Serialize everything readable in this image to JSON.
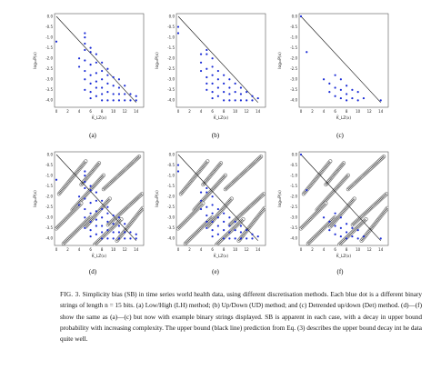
{
  "figure": {
    "panels": [
      "(a)",
      "(b)",
      "(c)",
      "(d)",
      "(e)",
      "(f)"
    ],
    "ylabel": "log₁₀P(x)",
    "xlabel": "K̃_LZ(x)"
  },
  "caption": {
    "label": "FIG. 3.",
    "text": "Simplicity bias (SB) in time series world health data, using different discretisation methods. Each blue dot is a different binary strings of length n = 15 bits. (a) Low/High (LH) method; (b) Up/Down (UD) method; and (c) Detrended up/down (Det) method. (d)—(f) show the same as (a)—(c) but now with example binary strings displayed. SB is apparent in each case, with a decay in upper bound probability with increasing complexity. The upper bound (black line) prediction from Eq. (3) describes the upper bound decay int he data quite well."
  },
  "chart_data": [
    {
      "type": "scatter",
      "panel": "(a)",
      "xlim": [
        0,
        15
      ],
      "ylim": [
        -4.2,
        0
      ],
      "x_ticks": [
        0,
        2,
        4,
        6,
        8,
        10,
        12,
        14
      ],
      "y_ticks": [
        "0.0",
        "-0.5",
        "-1.0",
        "-1.5",
        "-2.0",
        "-2.5",
        "-3.0",
        "-3.5",
        "-4.0"
      ],
      "bound": [
        [
          0,
          0
        ],
        [
          14,
          -4.1
        ]
      ],
      "points": [
        [
          0,
          -1.2
        ],
        [
          4,
          -2.0
        ],
        [
          4,
          -2.4
        ],
        [
          5,
          -0.8
        ],
        [
          5,
          -1.0
        ],
        [
          5,
          -1.3
        ],
        [
          5,
          -1.6
        ],
        [
          5,
          -2.1
        ],
        [
          5,
          -2.6
        ],
        [
          5,
          -3.0
        ],
        [
          5,
          -3.5
        ],
        [
          6,
          -1.5
        ],
        [
          6,
          -1.7
        ],
        [
          6,
          -2.3
        ],
        [
          6,
          -2.8
        ],
        [
          6,
          -3.2
        ],
        [
          6,
          -3.6
        ],
        [
          6,
          -3.9
        ],
        [
          7,
          -1.8
        ],
        [
          7,
          -2.2
        ],
        [
          7,
          -2.7
        ],
        [
          7,
          -3.1
        ],
        [
          7,
          -3.4
        ],
        [
          7,
          -3.8
        ],
        [
          8,
          -2.2
        ],
        [
          8,
          -2.6
        ],
        [
          8,
          -3.0
        ],
        [
          8,
          -3.4
        ],
        [
          8,
          -3.7
        ],
        [
          8,
          -4.0
        ],
        [
          9,
          -2.5
        ],
        [
          9,
          -2.8
        ],
        [
          9,
          -3.2
        ],
        [
          9,
          -3.6
        ],
        [
          9,
          -4.0
        ],
        [
          10,
          -2.9
        ],
        [
          10,
          -3.3
        ],
        [
          10,
          -3.7
        ],
        [
          10,
          -4.0
        ],
        [
          11,
          -3.0
        ],
        [
          11,
          -3.4
        ],
        [
          11,
          -3.7
        ],
        [
          11,
          -4.0
        ],
        [
          12,
          -3.3
        ],
        [
          12,
          -3.7
        ],
        [
          12,
          -4.0
        ],
        [
          13,
          -3.7
        ],
        [
          13,
          -4.0
        ],
        [
          14,
          -3.8
        ],
        [
          14,
          -4.0
        ]
      ]
    },
    {
      "type": "scatter",
      "panel": "(b)",
      "xlim": [
        0,
        15
      ],
      "ylim": [
        -4.2,
        0
      ],
      "x_ticks": [
        0,
        2,
        4,
        6,
        8,
        10,
        12,
        14
      ],
      "y_ticks": [
        "0.0",
        "-0.5",
        "-1.0",
        "-1.5",
        "-2.0",
        "-2.5",
        "-3.0",
        "-3.5",
        "-4.0"
      ],
      "bound": [
        [
          0,
          0
        ],
        [
          14,
          -4.1
        ]
      ],
      "points": [
        [
          0,
          -0.5
        ],
        [
          0,
          -0.8
        ],
        [
          4,
          -1.8
        ],
        [
          4,
          -2.2
        ],
        [
          4,
          -2.6
        ],
        [
          5,
          -1.6
        ],
        [
          5,
          -1.8
        ],
        [
          5,
          -2.5
        ],
        [
          5,
          -2.9
        ],
        [
          5,
          -3.2
        ],
        [
          5,
          -3.5
        ],
        [
          6,
          -2.0
        ],
        [
          6,
          -2.4
        ],
        [
          6,
          -2.8
        ],
        [
          6,
          -3.2
        ],
        [
          6,
          -3.6
        ],
        [
          6,
          -3.9
        ],
        [
          7,
          -2.6
        ],
        [
          7,
          -3.0
        ],
        [
          7,
          -3.4
        ],
        [
          7,
          -3.8
        ],
        [
          8,
          -2.8
        ],
        [
          8,
          -3.2
        ],
        [
          8,
          -3.6
        ],
        [
          8,
          -4.0
        ],
        [
          9,
          -3.0
        ],
        [
          9,
          -3.4
        ],
        [
          9,
          -3.7
        ],
        [
          9,
          -4.0
        ],
        [
          10,
          -3.2
        ],
        [
          10,
          -3.6
        ],
        [
          10,
          -4.0
        ],
        [
          11,
          -3.4
        ],
        [
          11,
          -3.7
        ],
        [
          11,
          -4.0
        ],
        [
          12,
          -3.6
        ],
        [
          12,
          -4.0
        ],
        [
          13,
          -3.8
        ],
        [
          13,
          -4.0
        ],
        [
          14,
          -3.9
        ]
      ]
    },
    {
      "type": "scatter",
      "panel": "(c)",
      "xlim": [
        0,
        15
      ],
      "ylim": [
        -4.2,
        0
      ],
      "x_ticks": [
        0,
        2,
        4,
        6,
        8,
        10,
        12,
        14
      ],
      "y_ticks": [
        "0.0",
        "-0.5",
        "-1.0",
        "-1.5",
        "-2.0",
        "-2.5",
        "-3.0",
        "-3.5",
        "-4.0"
      ],
      "bound": [
        [
          0,
          0
        ],
        [
          14,
          -4.1
        ]
      ],
      "points": [
        [
          0,
          0.0
        ],
        [
          1,
          -1.7
        ],
        [
          4,
          -3.0
        ],
        [
          5,
          -3.2
        ],
        [
          5,
          -3.6
        ],
        [
          6,
          -2.8
        ],
        [
          6,
          -3.4
        ],
        [
          6,
          -3.8
        ],
        [
          7,
          -3.0
        ],
        [
          7,
          -3.5
        ],
        [
          7,
          -3.9
        ],
        [
          8,
          -3.3
        ],
        [
          8,
          -3.7
        ],
        [
          8,
          -4.0
        ],
        [
          9,
          -3.5
        ],
        [
          9,
          -3.9
        ],
        [
          10,
          -3.6
        ],
        [
          10,
          -4.0
        ],
        [
          11,
          -3.9
        ],
        [
          14,
          -4.0
        ]
      ]
    }
  ]
}
